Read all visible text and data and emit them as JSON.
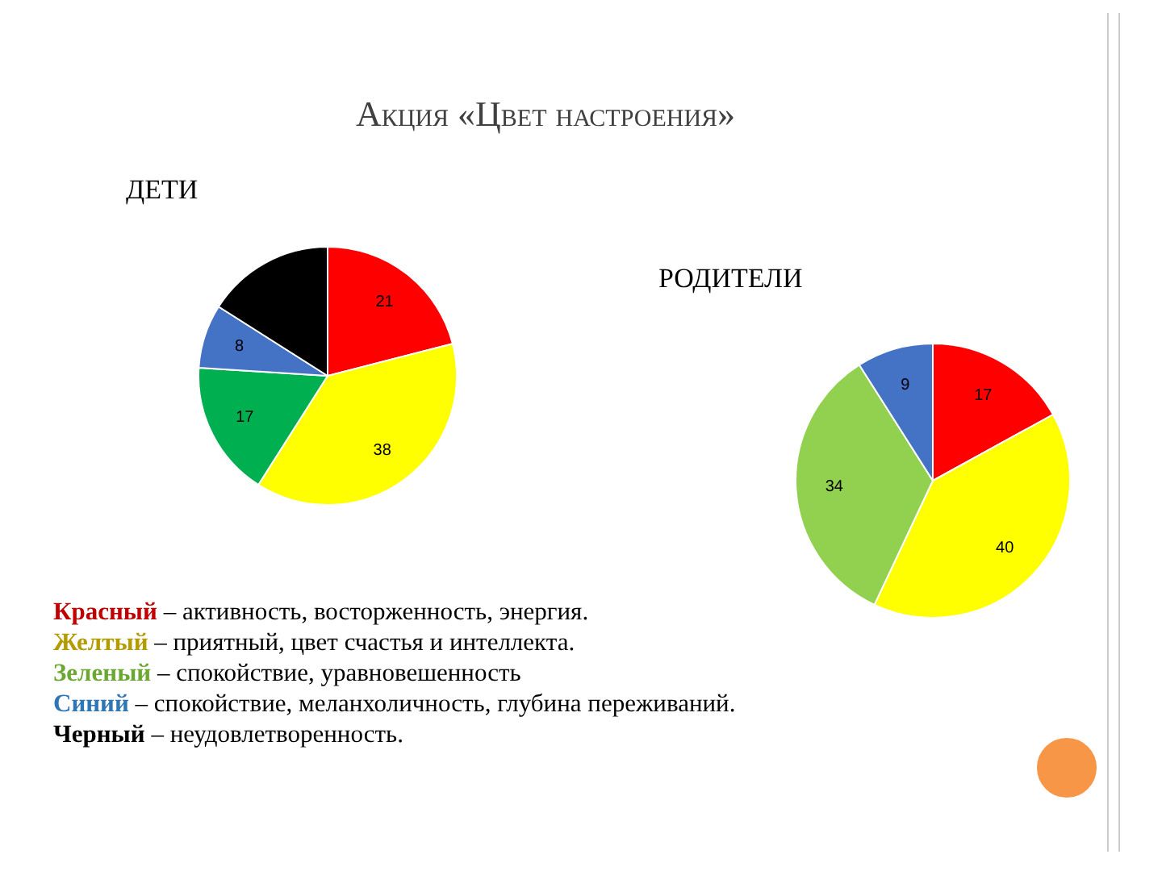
{
  "chart_data": [
    {
      "type": "pie",
      "title": "Акция «Цвет настроения»",
      "subtitle": "ДЕТИ",
      "categories": [
        null,
        null,
        null,
        null,
        null
      ],
      "values": [
        21,
        38,
        17,
        8,
        16
      ],
      "value_labels": [
        "21",
        "38",
        "17",
        "8",
        null
      ],
      "colors": [
        "#ff0000",
        "#ffff00",
        "#00b050",
        "#4472c4",
        "#000000"
      ],
      "annotations": [
        "Красный – активность, восторженность, энергия.",
        "Желтый – приятный, цвет счастья и интеллекта.",
        "Зеленый – спокойствие, уравновешенность",
        "Синий – спокойствие, меланхоличность, глубина переживаний.",
        "Черный – неудовлетворенность."
      ]
    },
    {
      "type": "pie",
      "title": "РОДИТЕЛИ",
      "categories": [
        null,
        null,
        null,
        null
      ],
      "values": [
        17,
        40,
        34,
        9
      ],
      "data_labels": true,
      "colors": [
        "#ff0000",
        "#ffff00",
        "#92d050",
        "#4472c4"
      ]
    }
  ]
}
